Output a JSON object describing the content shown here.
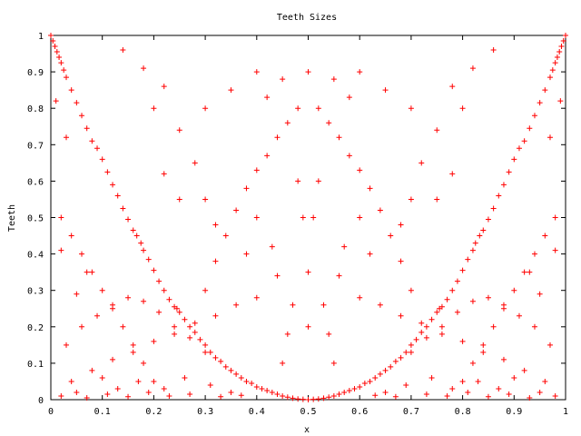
{
  "chart_data": {
    "type": "scatter",
    "title": "Teeth Sizes",
    "xlabel": "x",
    "ylabel": "Teeth",
    "xlim": [
      0,
      1
    ],
    "ylim": [
      0,
      1
    ],
    "x_ticks": [
      "0",
      "0.1",
      "0.2",
      "0.3",
      "0.4",
      "0.5",
      "0.6",
      "0.7",
      "0.8",
      "0.9",
      "1"
    ],
    "y_ticks": [
      "0",
      "0.1",
      "0.2",
      "0.3",
      "0.4",
      "0.5",
      "0.6",
      "0.7",
      "0.8",
      "0.9",
      "1"
    ],
    "grid": false,
    "marker": "+",
    "color": "#ff0000",
    "series": [
      {
        "points": [
          [
            0.0,
            1.0
          ],
          [
            0.004,
            0.985
          ],
          [
            0.008,
            0.97
          ],
          [
            0.012,
            0.955
          ],
          [
            0.016,
            0.94
          ],
          [
            0.02,
            0.925
          ],
          [
            0.025,
            0.905
          ],
          [
            0.03,
            0.885
          ],
          [
            0.04,
            0.85
          ],
          [
            0.05,
            0.815
          ],
          [
            0.06,
            0.78
          ],
          [
            0.07,
            0.745
          ],
          [
            0.08,
            0.71
          ],
          [
            0.09,
            0.69
          ],
          [
            0.1,
            0.66
          ],
          [
            0.11,
            0.625
          ],
          [
            0.12,
            0.59
          ],
          [
            0.13,
            0.56
          ],
          [
            0.14,
            0.525
          ],
          [
            0.15,
            0.495
          ],
          [
            0.16,
            0.465
          ],
          [
            0.167,
            0.45
          ],
          [
            0.175,
            0.43
          ],
          [
            0.18,
            0.41
          ],
          [
            0.19,
            0.385
          ],
          [
            0.2,
            0.355
          ],
          [
            0.21,
            0.325
          ],
          [
            0.22,
            0.3
          ],
          [
            0.23,
            0.275
          ],
          [
            0.24,
            0.255
          ],
          [
            0.245,
            0.25
          ],
          [
            0.25,
            0.24
          ],
          [
            0.26,
            0.22
          ],
          [
            0.27,
            0.2
          ],
          [
            0.28,
            0.185
          ],
          [
            0.29,
            0.165
          ],
          [
            0.3,
            0.15
          ],
          [
            0.31,
            0.13
          ],
          [
            0.32,
            0.115
          ],
          [
            0.33,
            0.105
          ],
          [
            0.34,
            0.09
          ],
          [
            0.35,
            0.08
          ],
          [
            0.36,
            0.07
          ],
          [
            0.37,
            0.06
          ],
          [
            0.38,
            0.05
          ],
          [
            0.39,
            0.045
          ],
          [
            0.4,
            0.035
          ],
          [
            0.41,
            0.03
          ],
          [
            0.42,
            0.025
          ],
          [
            0.43,
            0.02
          ],
          [
            0.44,
            0.015
          ],
          [
            0.45,
            0.01
          ],
          [
            0.46,
            0.007
          ],
          [
            0.47,
            0.004
          ],
          [
            0.48,
            0.002
          ],
          [
            0.49,
            0.001
          ],
          [
            0.5,
            0.0
          ],
          [
            0.51,
            0.001
          ],
          [
            0.52,
            0.002
          ],
          [
            0.53,
            0.004
          ],
          [
            0.54,
            0.007
          ],
          [
            0.55,
            0.01
          ],
          [
            0.56,
            0.015
          ],
          [
            0.57,
            0.02
          ],
          [
            0.58,
            0.025
          ],
          [
            0.59,
            0.03
          ],
          [
            0.6,
            0.035
          ],
          [
            0.61,
            0.045
          ],
          [
            0.62,
            0.05
          ],
          [
            0.63,
            0.06
          ],
          [
            0.64,
            0.07
          ],
          [
            0.65,
            0.08
          ],
          [
            0.66,
            0.09
          ],
          [
            0.67,
            0.105
          ],
          [
            0.68,
            0.115
          ],
          [
            0.69,
            0.13
          ],
          [
            0.7,
            0.15
          ],
          [
            0.71,
            0.165
          ],
          [
            0.72,
            0.185
          ],
          [
            0.73,
            0.2
          ],
          [
            0.74,
            0.22
          ],
          [
            0.75,
            0.24
          ],
          [
            0.755,
            0.25
          ],
          [
            0.76,
            0.255
          ],
          [
            0.77,
            0.275
          ],
          [
            0.78,
            0.3
          ],
          [
            0.79,
            0.325
          ],
          [
            0.8,
            0.355
          ],
          [
            0.81,
            0.385
          ],
          [
            0.82,
            0.41
          ],
          [
            0.825,
            0.43
          ],
          [
            0.833,
            0.45
          ],
          [
            0.84,
            0.465
          ],
          [
            0.85,
            0.495
          ],
          [
            0.86,
            0.525
          ],
          [
            0.87,
            0.56
          ],
          [
            0.88,
            0.59
          ],
          [
            0.89,
            0.625
          ],
          [
            0.9,
            0.66
          ],
          [
            0.91,
            0.69
          ],
          [
            0.92,
            0.71
          ],
          [
            0.93,
            0.745
          ],
          [
            0.94,
            0.78
          ],
          [
            0.95,
            0.815
          ],
          [
            0.96,
            0.85
          ],
          [
            0.97,
            0.885
          ],
          [
            0.975,
            0.905
          ],
          [
            0.98,
            0.925
          ],
          [
            0.984,
            0.94
          ],
          [
            0.988,
            0.955
          ],
          [
            0.992,
            0.97
          ],
          [
            0.996,
            0.985
          ],
          [
            1.0,
            1.0
          ],
          [
            0.02,
            0.5
          ],
          [
            0.04,
            0.45
          ],
          [
            0.06,
            0.4
          ],
          [
            0.08,
            0.35
          ],
          [
            0.1,
            0.3
          ],
          [
            0.12,
            0.25
          ],
          [
            0.14,
            0.2
          ],
          [
            0.16,
            0.15
          ],
          [
            0.18,
            0.1
          ],
          [
            0.2,
            0.05
          ],
          [
            0.98,
            0.5
          ],
          [
            0.96,
            0.45
          ],
          [
            0.94,
            0.4
          ],
          [
            0.92,
            0.35
          ],
          [
            0.9,
            0.3
          ],
          [
            0.88,
            0.25
          ],
          [
            0.86,
            0.2
          ],
          [
            0.84,
            0.15
          ],
          [
            0.82,
            0.1
          ],
          [
            0.8,
            0.05
          ],
          [
            0.03,
            0.15
          ],
          [
            0.06,
            0.2
          ],
          [
            0.09,
            0.23
          ],
          [
            0.12,
            0.26
          ],
          [
            0.15,
            0.28
          ],
          [
            0.18,
            0.27
          ],
          [
            0.21,
            0.24
          ],
          [
            0.24,
            0.2
          ],
          [
            0.27,
            0.17
          ],
          [
            0.3,
            0.13
          ],
          [
            0.97,
            0.15
          ],
          [
            0.94,
            0.2
          ],
          [
            0.91,
            0.23
          ],
          [
            0.88,
            0.26
          ],
          [
            0.85,
            0.28
          ],
          [
            0.82,
            0.27
          ],
          [
            0.79,
            0.24
          ],
          [
            0.76,
            0.2
          ],
          [
            0.73,
            0.17
          ],
          [
            0.7,
            0.13
          ],
          [
            0.04,
            0.05
          ],
          [
            0.08,
            0.08
          ],
          [
            0.12,
            0.11
          ],
          [
            0.16,
            0.13
          ],
          [
            0.2,
            0.16
          ],
          [
            0.24,
            0.18
          ],
          [
            0.28,
            0.21
          ],
          [
            0.32,
            0.23
          ],
          [
            0.36,
            0.26
          ],
          [
            0.4,
            0.28
          ],
          [
            0.96,
            0.05
          ],
          [
            0.92,
            0.08
          ],
          [
            0.88,
            0.11
          ],
          [
            0.84,
            0.13
          ],
          [
            0.8,
            0.16
          ],
          [
            0.76,
            0.18
          ],
          [
            0.72,
            0.21
          ],
          [
            0.68,
            0.23
          ],
          [
            0.64,
            0.26
          ],
          [
            0.6,
            0.28
          ],
          [
            0.3,
            0.3
          ],
          [
            0.32,
            0.38
          ],
          [
            0.34,
            0.45
          ],
          [
            0.36,
            0.52
          ],
          [
            0.38,
            0.58
          ],
          [
            0.4,
            0.63
          ],
          [
            0.42,
            0.67
          ],
          [
            0.44,
            0.72
          ],
          [
            0.46,
            0.76
          ],
          [
            0.48,
            0.8
          ],
          [
            0.7,
            0.3
          ],
          [
            0.68,
            0.38
          ],
          [
            0.66,
            0.45
          ],
          [
            0.64,
            0.52
          ],
          [
            0.62,
            0.58
          ],
          [
            0.6,
            0.63
          ],
          [
            0.58,
            0.67
          ],
          [
            0.56,
            0.72
          ],
          [
            0.54,
            0.76
          ],
          [
            0.52,
            0.8
          ],
          [
            0.35,
            0.85
          ],
          [
            0.4,
            0.9
          ],
          [
            0.45,
            0.88
          ],
          [
            0.5,
            0.9
          ],
          [
            0.55,
            0.88
          ],
          [
            0.6,
            0.9
          ],
          [
            0.65,
            0.85
          ],
          [
            0.3,
            0.8
          ],
          [
            0.7,
            0.8
          ],
          [
            0.42,
            0.83
          ],
          [
            0.58,
            0.83
          ],
          [
            0.14,
            0.96
          ],
          [
            0.18,
            0.91
          ],
          [
            0.22,
            0.86
          ],
          [
            0.86,
            0.96
          ],
          [
            0.82,
            0.91
          ],
          [
            0.78,
            0.86
          ],
          [
            0.2,
            0.8
          ],
          [
            0.8,
            0.8
          ],
          [
            0.25,
            0.74
          ],
          [
            0.75,
            0.74
          ],
          [
            0.28,
            0.65
          ],
          [
            0.72,
            0.65
          ],
          [
            0.3,
            0.55
          ],
          [
            0.7,
            0.55
          ],
          [
            0.32,
            0.48
          ],
          [
            0.68,
            0.48
          ],
          [
            0.25,
            0.55
          ],
          [
            0.75,
            0.55
          ],
          [
            0.22,
            0.62
          ],
          [
            0.78,
            0.62
          ],
          [
            0.1,
            0.06
          ],
          [
            0.13,
            0.03
          ],
          [
            0.17,
            0.05
          ],
          [
            0.22,
            0.03
          ],
          [
            0.26,
            0.06
          ],
          [
            0.31,
            0.04
          ],
          [
            0.35,
            0.02
          ],
          [
            0.9,
            0.06
          ],
          [
            0.87,
            0.03
          ],
          [
            0.83,
            0.05
          ],
          [
            0.78,
            0.03
          ],
          [
            0.74,
            0.06
          ],
          [
            0.69,
            0.04
          ],
          [
            0.65,
            0.02
          ],
          [
            0.02,
            0.01
          ],
          [
            0.05,
            0.02
          ],
          [
            0.07,
            0.005
          ],
          [
            0.11,
            0.015
          ],
          [
            0.15,
            0.008
          ],
          [
            0.19,
            0.02
          ],
          [
            0.23,
            0.01
          ],
          [
            0.27,
            0.015
          ],
          [
            0.33,
            0.008
          ],
          [
            0.37,
            0.012
          ],
          [
            0.98,
            0.01
          ],
          [
            0.95,
            0.02
          ],
          [
            0.93,
            0.005
          ],
          [
            0.89,
            0.015
          ],
          [
            0.85,
            0.008
          ],
          [
            0.81,
            0.02
          ],
          [
            0.77,
            0.01
          ],
          [
            0.73,
            0.015
          ],
          [
            0.67,
            0.008
          ],
          [
            0.63,
            0.012
          ],
          [
            0.45,
            0.1
          ],
          [
            0.55,
            0.1
          ],
          [
            0.46,
            0.18
          ],
          [
            0.54,
            0.18
          ],
          [
            0.47,
            0.26
          ],
          [
            0.53,
            0.26
          ],
          [
            0.44,
            0.34
          ],
          [
            0.56,
            0.34
          ],
          [
            0.43,
            0.42
          ],
          [
            0.57,
            0.42
          ],
          [
            0.5,
            0.2
          ],
          [
            0.5,
            0.35
          ],
          [
            0.49,
            0.5
          ],
          [
            0.51,
            0.5
          ],
          [
            0.48,
            0.6
          ],
          [
            0.52,
            0.6
          ],
          [
            0.4,
            0.5
          ],
          [
            0.6,
            0.5
          ],
          [
            0.38,
            0.4
          ],
          [
            0.62,
            0.4
          ],
          [
            0.02,
            0.41
          ],
          [
            0.98,
            0.41
          ],
          [
            0.05,
            0.29
          ],
          [
            0.95,
            0.29
          ],
          [
            0.07,
            0.35
          ],
          [
            0.93,
            0.35
          ],
          [
            0.01,
            0.82
          ],
          [
            0.99,
            0.82
          ],
          [
            0.03,
            0.72
          ],
          [
            0.97,
            0.72
          ]
        ]
      }
    ]
  }
}
